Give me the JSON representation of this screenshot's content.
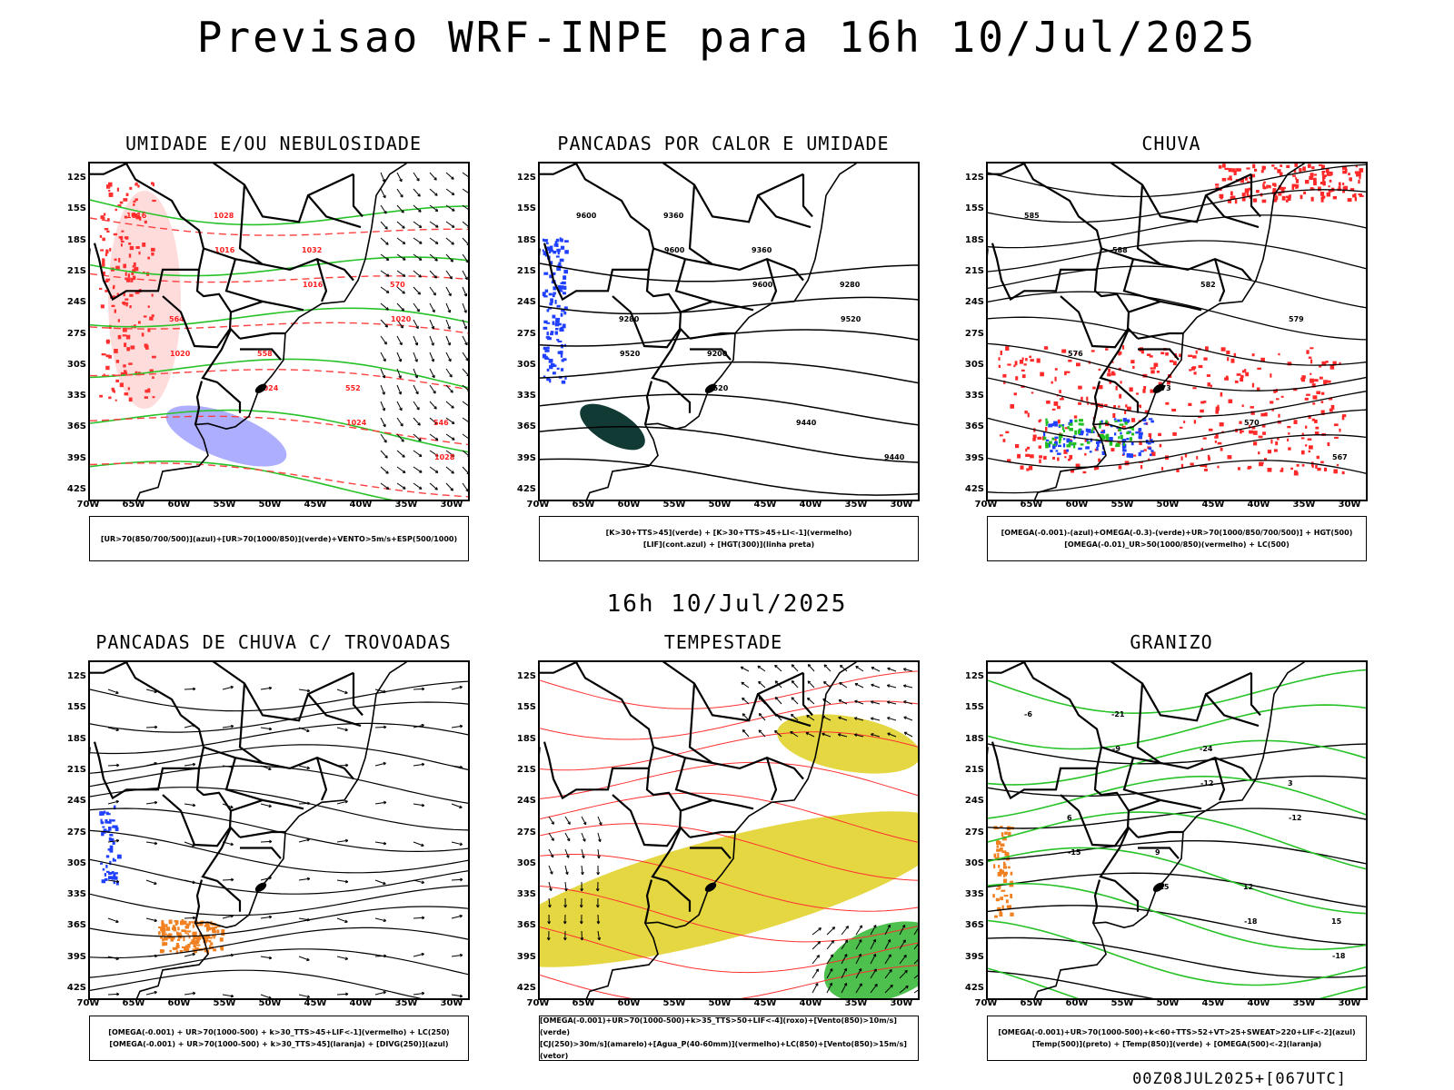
{
  "title": "Previsao WRF-INPE  para 16h 10/Jul/2025",
  "mid_title": "16h 10/Jul/2025",
  "footer": "00Z08JUL2025+[067UTC]",
  "lat_labels": [
    "12S",
    "15S",
    "18S",
    "21S",
    "24S",
    "27S",
    "30S",
    "33S",
    "36S",
    "39S",
    "42S"
  ],
  "lon_labels": [
    "70W",
    "65W",
    "60W",
    "55W",
    "50W",
    "45W",
    "40W",
    "35W",
    "30W"
  ],
  "panels": [
    {
      "title": "UMIDADE E/OU NEBULOSIDADE",
      "legend": [
        "[UR>70(850/700/500)](azul)+[UR>70(1000/850)](verde)+VENTO>5m/s+ESP(500/1000)"
      ],
      "contour_labels": [
        "1016",
        "1016",
        "1016",
        "1020",
        "1020",
        "1024",
        "1024",
        "1028",
        "1028",
        "1032",
        "570",
        "564",
        "558",
        "552",
        "546"
      ]
    },
    {
      "title": "PANCADAS POR CALOR E UMIDADE",
      "legend": [
        "[K>30+TTS>45](verde) + [K>30+TTS>45+LI<-1](vermelho)",
        "[LIF](cont.azul) + [HGT(300)](linha preta)"
      ],
      "contour_labels": [
        "9600",
        "9600",
        "9600",
        "9520",
        "9520",
        "9520",
        "9440",
        "9440",
        "9360",
        "9360",
        "9280",
        "9280",
        "9200"
      ]
    },
    {
      "title": "CHUVA",
      "legend": [
        "[OMEGA(-0.001)-(azul)+OMEGA(-0.3)-(verde)+UR>70(1000/850/700/500)] + HGT(500)",
        "[OMEGA(-0.01)_UR>50(1000/850)(vermelho) + LC(500)"
      ],
      "contour_labels": [
        "585",
        "588",
        "582",
        "579",
        "576",
        "573",
        "570",
        "567"
      ]
    },
    {
      "title": "PANCADAS DE CHUVA C/ TROVOADAS",
      "legend": [
        "[OMEGA(-0.001) + UR>70(1000-500) + k>30_TTS>45+LIF<-1](vermelho) + LC(250)",
        "[OMEGA(-0.001) + UR>70(1000-500) + k>30_TTS>45](laranja) + [DIVG(250)](azul)"
      ],
      "contour_labels": []
    },
    {
      "title": "TEMPESTADE",
      "legend": [
        "[OMEGA(-0.001)+UR>70(1000-500)+k>35_TTS>50+LIF<-4](roxo)+[Vento(850)>10m/s](verde)",
        "[CJ(250)>30m/s](amarelo)+[Agua_P(40-60mm)](vermelho)+LC(850)+[Vento(850)>15m/s](vetor)"
      ],
      "contour_labels": []
    },
    {
      "title": "GRANIZO",
      "legend": [
        "[OMEGA(-0.001)+UR>70(1000-500)+k<60+TTS>52+VT>25+SWEAT>220+LIF<-2](azul)",
        "[Temp(500)](preto) + [Temp(850)](verde) + [OMEGA(500)<-2](laranja)"
      ],
      "contour_labels": [
        "-6",
        "-9",
        "-12",
        "-12",
        "-15",
        "-15",
        "-18",
        "-18",
        "-21",
        "-24",
        "3",
        "6",
        "9",
        "12",
        "15"
      ]
    }
  ]
}
